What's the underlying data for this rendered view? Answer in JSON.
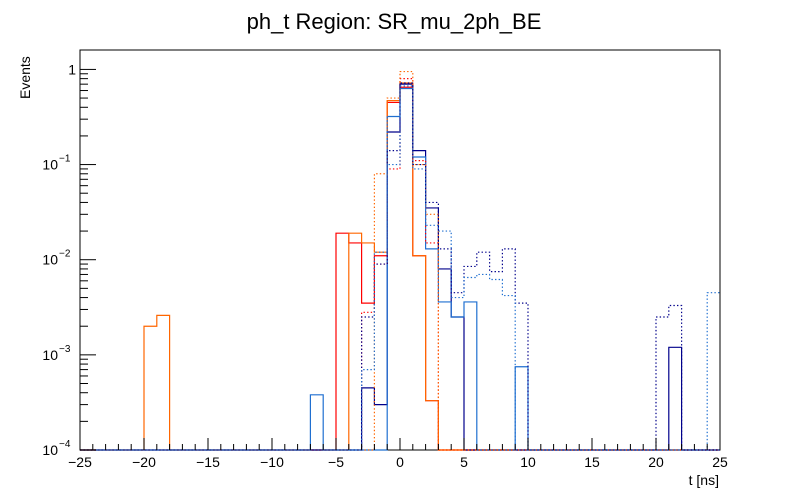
{
  "chart_data": {
    "type": "histogram",
    "title": "ph_t Region: SR_mu_2ph_BE",
    "xlabel": "t [ns]",
    "ylabel": "Events",
    "xlim": [
      -25,
      25
    ],
    "ylim": [
      0.0001,
      1.6
    ],
    "yscale": "log",
    "bin_width": 1,
    "x_ticks": [
      -25,
      -20,
      -15,
      -10,
      -5,
      0,
      5,
      10,
      15,
      20,
      25
    ],
    "y_ticks": [
      {
        "value": 0.0001,
        "base": "10",
        "exp": "−4"
      },
      {
        "value": 0.001,
        "base": "10",
        "exp": "−3"
      },
      {
        "value": 0.01,
        "base": "10",
        "exp": "−2"
      },
      {
        "value": 0.1,
        "base": "10",
        "exp": "−1"
      },
      {
        "value": 1,
        "base": "1",
        "exp": ""
      }
    ],
    "series": [
      {
        "color": "#ff0000",
        "style": "solid",
        "bins": [
          [
            -5,
            0.019
          ],
          [
            -4,
            0.015
          ],
          [
            -3,
            0.0035
          ],
          [
            -2,
            0.011
          ],
          [
            -1,
            0.45
          ],
          [
            0,
            0.65
          ],
          [
            1,
            0.011
          ],
          [
            2,
            0.00033
          ]
        ]
      },
      {
        "color": "#ff6600",
        "style": "solid",
        "bins": [
          [
            -20,
            0.002
          ],
          [
            -19,
            0.0026
          ],
          [
            -4,
            0.019
          ],
          [
            -3,
            0.015
          ],
          [
            -2,
            0.012
          ],
          [
            -1,
            0.47
          ],
          [
            0,
            0.72
          ],
          [
            1,
            0.011
          ],
          [
            2,
            0.00033
          ]
        ]
      },
      {
        "color": "#00008b",
        "style": "solid",
        "bins": [
          [
            -3,
            0.00045
          ],
          [
            -2,
            0.0003
          ],
          [
            -1,
            0.22
          ],
          [
            0,
            0.7
          ],
          [
            1,
            0.14
          ],
          [
            2,
            0.035
          ],
          [
            3,
            0.008
          ],
          [
            4,
            0.0025
          ],
          [
            21,
            0.0012
          ]
        ]
      },
      {
        "color": "#1f6fd0",
        "style": "solid",
        "bins": [
          [
            -7,
            0.00038
          ],
          [
            -1,
            0.32
          ],
          [
            0,
            0.63
          ],
          [
            1,
            0.12
          ],
          [
            2,
            0.013
          ],
          [
            3,
            0.0036
          ],
          [
            4,
            0.0025
          ],
          [
            5,
            0.0036
          ],
          [
            9,
            0.00075
          ]
        ]
      },
      {
        "color": "#ff0000",
        "style": "dotted",
        "bins": [
          [
            -3,
            0.0028
          ],
          [
            -2,
            0.009
          ],
          [
            -1,
            0.09
          ],
          [
            0,
            0.8
          ],
          [
            1,
            0.11
          ],
          [
            2,
            0.015
          ]
        ]
      },
      {
        "color": "#ff6600",
        "style": "dotted",
        "bins": [
          [
            -2,
            0.08
          ],
          [
            -1,
            0.5
          ],
          [
            0,
            0.95
          ],
          [
            1,
            0.1
          ],
          [
            2,
            0.03
          ]
        ]
      },
      {
        "color": "#00008b",
        "style": "dotted",
        "bins": [
          [
            -3,
            0.0025
          ],
          [
            -2,
            0.009
          ],
          [
            -1,
            0.14
          ],
          [
            0,
            0.72
          ],
          [
            1,
            0.1
          ],
          [
            2,
            0.04
          ],
          [
            3,
            0.013
          ],
          [
            4,
            0.0045
          ],
          [
            5,
            0.0085
          ],
          [
            6,
            0.012
          ],
          [
            7,
            0.0075
          ],
          [
            8,
            0.013
          ],
          [
            9,
            0.0035
          ],
          [
            20,
            0.0025
          ],
          [
            21,
            0.0033
          ]
        ]
      },
      {
        "color": "#1f6fd0",
        "style": "dotted",
        "bins": [
          [
            -3,
            0.0007
          ],
          [
            -2,
            0.012
          ],
          [
            -1,
            0.1
          ],
          [
            0,
            0.67
          ],
          [
            1,
            0.09
          ],
          [
            2,
            0.023
          ],
          [
            3,
            0.02
          ],
          [
            4,
            0.004
          ],
          [
            5,
            0.0065
          ],
          [
            6,
            0.007
          ],
          [
            7,
            0.0062
          ],
          [
            8,
            0.0042
          ],
          [
            24,
            0.0045
          ]
        ]
      }
    ]
  }
}
